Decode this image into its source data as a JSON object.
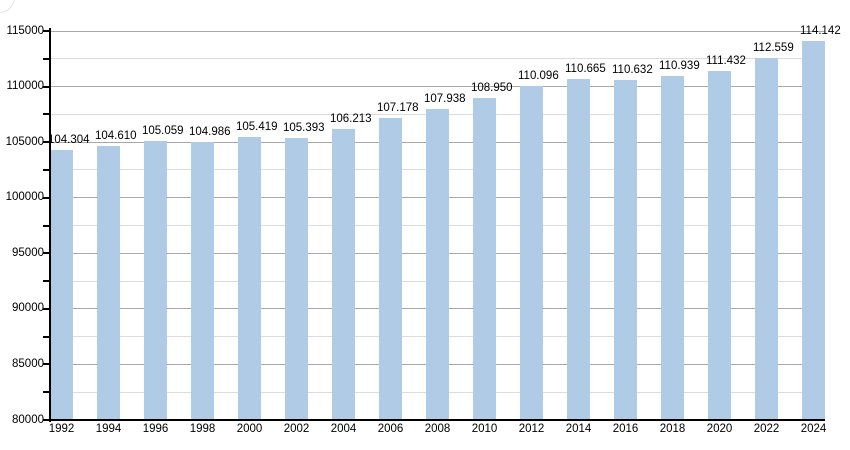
{
  "chart_data": {
    "type": "bar",
    "title": "",
    "xlabel": "",
    "ylabel": "",
    "categories": [
      "1992",
      "1994",
      "1996",
      "1998",
      "2000",
      "2002",
      "2004",
      "2006",
      "2008",
      "2010",
      "2012",
      "2014",
      "2016",
      "2018",
      "2020",
      "2022",
      "2024"
    ],
    "values": [
      104304,
      104610,
      105059,
      104986,
      105419,
      105393,
      106213,
      107178,
      107938,
      108950,
      110096,
      110665,
      110632,
      110939,
      111432,
      112559,
      114142
    ],
    "value_labels": [
      "104.304",
      "104.610",
      "105.059",
      "104.986",
      "105.419",
      "105.393",
      "106.213",
      "107.178",
      "107.938",
      "108.950",
      "110.096",
      "110.665",
      "110.632",
      "110.939",
      "111.432",
      "112.559",
      "114.142"
    ],
    "ylim": [
      80000,
      115000
    ],
    "y_major_step": 5000,
    "y_minor_step": 2500,
    "y_tick_labels": [
      "80000",
      "85000",
      "90000",
      "95000",
      "100000",
      "105000",
      "110000",
      "115000"
    ],
    "legend": [],
    "grid": "on",
    "colors": {
      "bar_fill": "#b0cbe5",
      "grid_major": "#a8a8a8",
      "grid_minor": "#dcdcdc",
      "axis": "#000000",
      "text": "#000000",
      "background": "#ffffff"
    }
  }
}
